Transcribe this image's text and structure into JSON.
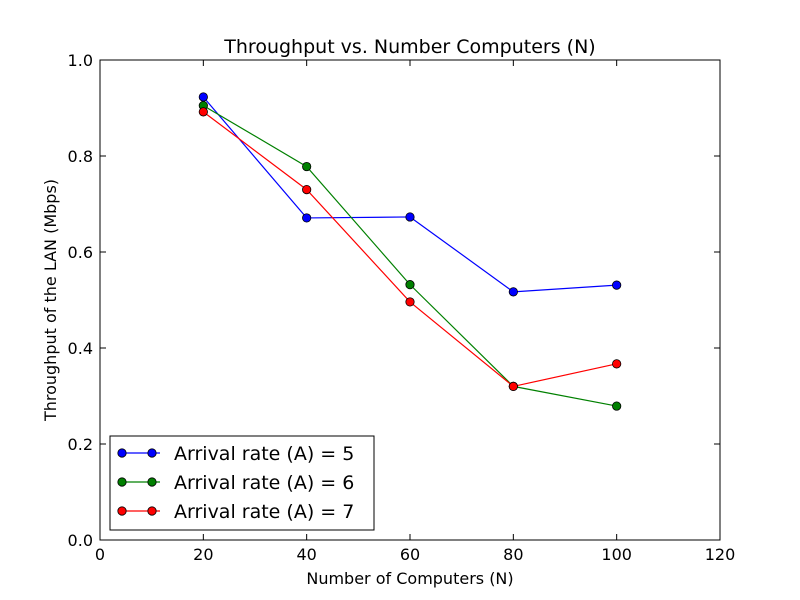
{
  "chart_data": {
    "type": "line",
    "title": "Throughput vs. Number Computers (N)",
    "xlabel": "Number of Computers (N)",
    "ylabel": "Throughput of the LAN (Mbps)",
    "xlim": [
      0,
      120
    ],
    "ylim": [
      0.0,
      1.0
    ],
    "xticks": [
      0,
      20,
      40,
      60,
      80,
      100,
      120
    ],
    "xtick_labels": [
      "0",
      "20",
      "40",
      "60",
      "80",
      "100",
      "120"
    ],
    "yticks": [
      0.0,
      0.2,
      0.4,
      0.6,
      0.8,
      1.0
    ],
    "ytick_labels": [
      "0.0",
      "0.2",
      "0.4",
      "0.6",
      "0.8",
      "1.0"
    ],
    "grid": false,
    "legend_position": "lower-left",
    "x": [
      20,
      40,
      60,
      80,
      100
    ],
    "series": [
      {
        "name": "Arrival rate (A) = 5",
        "color": "#0000ff",
        "values": [
          0.923,
          0.671,
          0.673,
          0.517,
          0.531
        ]
      },
      {
        "name": "Arrival rate (A) = 6",
        "color": "#008000",
        "values": [
          0.905,
          0.778,
          0.532,
          0.32,
          0.279
        ]
      },
      {
        "name": "Arrival rate (A) = 7",
        "color": "#ff0000",
        "values": [
          0.892,
          0.73,
          0.496,
          0.32,
          0.367
        ]
      }
    ]
  }
}
